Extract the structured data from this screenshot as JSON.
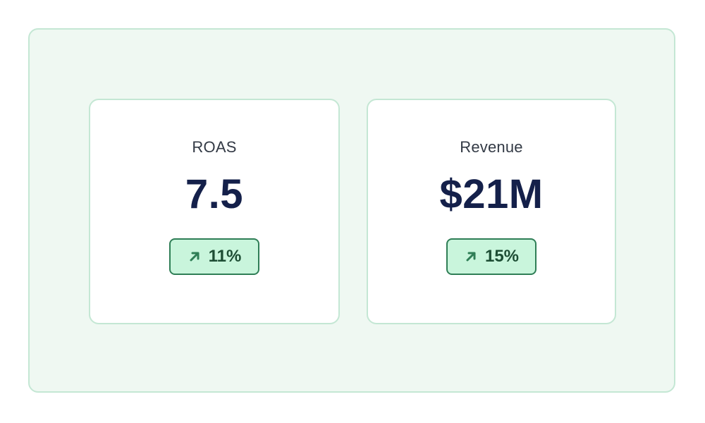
{
  "cards": [
    {
      "label": "ROAS",
      "value": "7.5",
      "change": "11%",
      "change_icon": "arrow-up-right-icon"
    },
    {
      "label": "Revenue",
      "value": "$21M",
      "change": "15%",
      "change_icon": "arrow-up-right-icon"
    }
  ],
  "colors": {
    "panel_bg": "#eff8f2",
    "panel_border": "#c4e7d4",
    "value_text": "#14204a",
    "badge_bg": "#c9f5dc",
    "badge_border": "#2f7e56",
    "badge_text": "#1d4d34"
  }
}
